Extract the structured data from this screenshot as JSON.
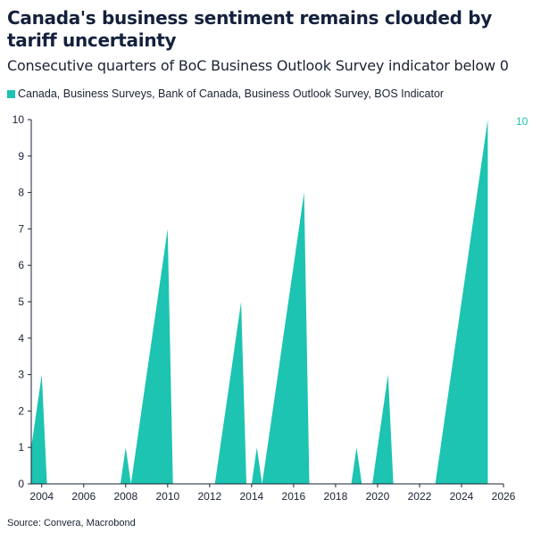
{
  "title": "Canada's business sentiment remains clouded by tariff uncertainty",
  "subtitle": "Consecutive quarters of BoC Business Outlook Survey indicator below 0",
  "source": "Source: Convera, Macrobond",
  "colors": {
    "series": "#1cc4b1",
    "axis": "#1a2233"
  },
  "chart_data": {
    "type": "area",
    "title": "Canada's business sentiment remains clouded by tariff uncertainty",
    "subtitle": "Consecutive quarters of BoC Business Outlook Survey indicator below 0",
    "xlabel": "",
    "ylabel": "",
    "xlim": [
      2003.5,
      2026
    ],
    "ylim": [
      0,
      10
    ],
    "x_ticks": [
      "2004",
      "2006",
      "2008",
      "2010",
      "2012",
      "2014",
      "2016",
      "2018",
      "2020",
      "2022",
      "2024",
      "2026"
    ],
    "y_ticks": [
      "0",
      "1",
      "2",
      "3",
      "4",
      "5",
      "6",
      "7",
      "8",
      "9",
      "10"
    ],
    "grid": false,
    "legend": "top-left",
    "end_label": "10",
    "series": [
      {
        "name": "Canada, Business Surveys, Bank of Canada, Business Outlook Survey, BOS Indicator",
        "points": [
          {
            "x": 2003.5,
            "y": 1
          },
          {
            "x": 2003.75,
            "y": 2
          },
          {
            "x": 2004.0,
            "y": 3
          },
          {
            "x": 2004.25,
            "y": 0
          },
          {
            "x": 2007.75,
            "y": 0
          },
          {
            "x": 2008.0,
            "y": 1
          },
          {
            "x": 2008.25,
            "y": 0
          },
          {
            "x": 2008.5,
            "y": 1
          },
          {
            "x": 2008.75,
            "y": 2
          },
          {
            "x": 2009.0,
            "y": 3
          },
          {
            "x": 2009.25,
            "y": 4
          },
          {
            "x": 2009.5,
            "y": 5
          },
          {
            "x": 2009.75,
            "y": 6
          },
          {
            "x": 2010.0,
            "y": 7
          },
          {
            "x": 2010.25,
            "y": 0
          },
          {
            "x": 2012.25,
            "y": 0
          },
          {
            "x": 2012.5,
            "y": 1
          },
          {
            "x": 2012.75,
            "y": 2
          },
          {
            "x": 2013.0,
            "y": 3
          },
          {
            "x": 2013.25,
            "y": 4
          },
          {
            "x": 2013.5,
            "y": 5
          },
          {
            "x": 2013.75,
            "y": 0
          },
          {
            "x": 2014.0,
            "y": 0
          },
          {
            "x": 2014.25,
            "y": 1
          },
          {
            "x": 2014.5,
            "y": 0
          },
          {
            "x": 2014.75,
            "y": 1
          },
          {
            "x": 2015.0,
            "y": 2
          },
          {
            "x": 2015.25,
            "y": 3
          },
          {
            "x": 2015.5,
            "y": 4
          },
          {
            "x": 2015.75,
            "y": 5
          },
          {
            "x": 2016.0,
            "y": 6
          },
          {
            "x": 2016.25,
            "y": 7
          },
          {
            "x": 2016.5,
            "y": 8
          },
          {
            "x": 2016.75,
            "y": 0
          },
          {
            "x": 2018.75,
            "y": 0
          },
          {
            "x": 2019.0,
            "y": 1
          },
          {
            "x": 2019.25,
            "y": 0
          },
          {
            "x": 2019.75,
            "y": 0
          },
          {
            "x": 2020.0,
            "y": 1
          },
          {
            "x": 2020.25,
            "y": 2
          },
          {
            "x": 2020.5,
            "y": 3
          },
          {
            "x": 2020.75,
            "y": 0
          },
          {
            "x": 2022.75,
            "y": 0
          },
          {
            "x": 2023.0,
            "y": 1
          },
          {
            "x": 2023.25,
            "y": 2
          },
          {
            "x": 2023.5,
            "y": 3
          },
          {
            "x": 2023.75,
            "y": 4
          },
          {
            "x": 2024.0,
            "y": 5
          },
          {
            "x": 2024.25,
            "y": 6
          },
          {
            "x": 2024.5,
            "y": 7
          },
          {
            "x": 2024.75,
            "y": 8
          },
          {
            "x": 2025.0,
            "y": 9
          },
          {
            "x": 2025.25,
            "y": 10
          }
        ]
      }
    ]
  }
}
